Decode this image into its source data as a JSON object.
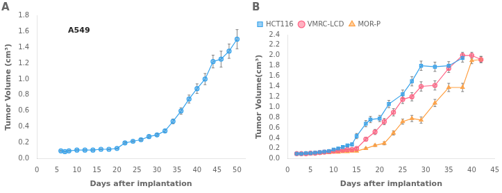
{
  "chart_data": [
    {
      "type": "line",
      "title": "A",
      "annotation": "A549",
      "xlabel": "Days after implantation",
      "ylabel": "Tumor Volume (cm³)",
      "xlim": [
        0,
        52
      ],
      "ylim": [
        0.0,
        1.8
      ],
      "xticks": [
        0,
        5,
        10,
        15,
        20,
        25,
        30,
        35,
        40,
        45,
        50
      ],
      "yticks": [
        {
          "value": 0.0,
          "label": "0.0"
        },
        0.2,
        0.4,
        0.6,
        0.8,
        {
          "value": 1.0,
          "label": "1.0"
        },
        1.2,
        1.4,
        1.6,
        1.8
      ],
      "grid": false,
      "series": [
        {
          "marker": "circle",
          "x": [
            6,
            7,
            8,
            10,
            12,
            14,
            16,
            18,
            20,
            22,
            24,
            26,
            28,
            30,
            32,
            34,
            36,
            38,
            40,
            42,
            44,
            46,
            48,
            50
          ],
          "values": [
            0.1,
            0.09,
            0.1,
            0.11,
            0.11,
            0.11,
            0.12,
            0.12,
            0.13,
            0.2,
            0.22,
            0.24,
            0.28,
            0.3,
            0.35,
            0.47,
            0.6,
            0.75,
            0.88,
            1.0,
            1.22,
            1.25,
            1.35,
            1.5
          ],
          "yerr": [
            0.005,
            0.005,
            0.005,
            0.005,
            0.005,
            0.005,
            0.005,
            0.005,
            0.005,
            0.01,
            0.01,
            0.015,
            0.015,
            0.015,
            0.02,
            0.03,
            0.04,
            0.05,
            0.06,
            0.07,
            0.08,
            0.1,
            0.09,
            0.12
          ]
        }
      ]
    },
    {
      "type": "line",
      "title": "B",
      "xlabel": "Days after implantation",
      "ylabel": "Tumor Volume(cm³)",
      "xlim": [
        0,
        45
      ],
      "ylim": [
        0,
        2.4
      ],
      "xticks": [
        0,
        5,
        10,
        15,
        20,
        25,
        30,
        35,
        40,
        45
      ],
      "yticks": [
        {
          "value": 0,
          "label": "0.0"
        },
        0.2,
        0.4,
        0.6,
        0.8,
        {
          "value": 1.0,
          "label": "1.0"
        },
        1.2,
        1.4,
        1.6,
        1.8,
        {
          "value": 2.0,
          "label": "2.0"
        },
        2.2,
        2.4
      ],
      "grid": false,
      "legend": "upper left",
      "series": [
        {
          "name": "HCT116",
          "marker": "square",
          "x": [
            2,
            3,
            4,
            5,
            6,
            7,
            8,
            9,
            10,
            11,
            12,
            13,
            14,
            15,
            17,
            18,
            20,
            22,
            25,
            27,
            29,
            32,
            35,
            38
          ],
          "values": [
            0.1,
            0.1,
            0.11,
            0.11,
            0.12,
            0.13,
            0.14,
            0.15,
            0.18,
            0.2,
            0.23,
            0.26,
            0.28,
            0.44,
            0.68,
            0.76,
            0.78,
            1.06,
            1.25,
            1.5,
            1.8,
            1.78,
            1.8,
            1.95
          ],
          "yerr": [
            0.01,
            0.01,
            0.01,
            0.01,
            0.01,
            0.01,
            0.01,
            0.01,
            0.02,
            0.02,
            0.02,
            0.02,
            0.03,
            0.05,
            0.06,
            0.06,
            0.06,
            0.07,
            0.08,
            0.09,
            0.09,
            0.09,
            0.08,
            0.08
          ]
        },
        {
          "name": "VMRC-LCD",
          "marker": "circle",
          "x": [
            2,
            3,
            4,
            5,
            6,
            7,
            8,
            9,
            10,
            11,
            12,
            13,
            14,
            15,
            17,
            19,
            21,
            23,
            25,
            27,
            29,
            32,
            35,
            38,
            40,
            42
          ],
          "values": [
            0.1,
            0.1,
            0.1,
            0.11,
            0.11,
            0.12,
            0.13,
            0.14,
            0.15,
            0.16,
            0.17,
            0.18,
            0.18,
            0.2,
            0.38,
            0.52,
            0.72,
            0.9,
            1.15,
            1.2,
            1.4,
            1.42,
            1.75,
            2.0,
            2.0,
            1.92
          ],
          "yerr": [
            0.01,
            0.01,
            0.01,
            0.01,
            0.01,
            0.01,
            0.01,
            0.01,
            0.01,
            0.01,
            0.01,
            0.01,
            0.01,
            0.02,
            0.04,
            0.05,
            0.06,
            0.07,
            0.08,
            0.08,
            0.09,
            0.09,
            0.08,
            0.06,
            0.06,
            0.06
          ]
        },
        {
          "name": "MOR-P",
          "marker": "triangle",
          "x": [
            2,
            3,
            4,
            5,
            6,
            7,
            8,
            9,
            10,
            11,
            12,
            13,
            14,
            15,
            17,
            19,
            21,
            23,
            25,
            27,
            29,
            32,
            35,
            38,
            40,
            42
          ],
          "values": [
            0.1,
            0.1,
            0.1,
            0.1,
            0.11,
            0.11,
            0.12,
            0.12,
            0.13,
            0.13,
            0.14,
            0.14,
            0.15,
            0.15,
            0.2,
            0.26,
            0.3,
            0.5,
            0.72,
            0.78,
            0.75,
            1.08,
            1.38,
            1.38,
            1.9,
            1.92
          ],
          "yerr": [
            0.01,
            0.01,
            0.01,
            0.01,
            0.01,
            0.01,
            0.01,
            0.01,
            0.01,
            0.01,
            0.01,
            0.01,
            0.01,
            0.01,
            0.02,
            0.02,
            0.03,
            0.04,
            0.05,
            0.06,
            0.06,
            0.07,
            0.08,
            0.08,
            0.06,
            0.06
          ]
        }
      ]
    }
  ]
}
